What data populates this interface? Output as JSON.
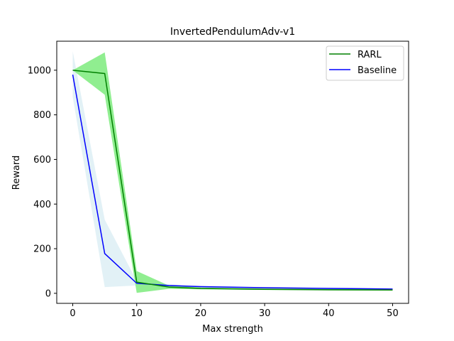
{
  "chart_data": {
    "type": "line",
    "title": "InvertedPendulumAdv-v1",
    "xlabel": "Max strength",
    "ylabel": "Reward",
    "xlim": [
      -2.5,
      52.5
    ],
    "ylim": [
      -45,
      1130
    ],
    "xticks": [
      0,
      10,
      20,
      30,
      40,
      50
    ],
    "yticks": [
      0,
      200,
      400,
      600,
      800,
      1000
    ],
    "grid": false,
    "legend_position": "top-right",
    "series": [
      {
        "name": "RARL",
        "color": "#008000",
        "band_color": "#90ee90",
        "x": [
          0,
          5,
          10,
          15,
          20,
          30,
          40,
          50
        ],
        "y": [
          1000,
          985,
          50,
          28,
          22,
          18,
          16,
          15
        ],
        "lower": [
          1000,
          890,
          2,
          20,
          18,
          15,
          13,
          12
        ],
        "upper": [
          1000,
          1080,
          100,
          35,
          26,
          21,
          19,
          18
        ]
      },
      {
        "name": "Baseline",
        "color": "#0000ff",
        "band_color": "#add8e6",
        "x": [
          0,
          5,
          10,
          15,
          20,
          30,
          40,
          50
        ],
        "y": [
          980,
          178,
          45,
          35,
          30,
          25,
          22,
          19
        ],
        "lower": [
          880,
          28,
          35,
          30,
          26,
          22,
          19,
          16
        ],
        "upper": [
          1085,
          330,
          55,
          40,
          34,
          28,
          25,
          22
        ]
      }
    ]
  }
}
